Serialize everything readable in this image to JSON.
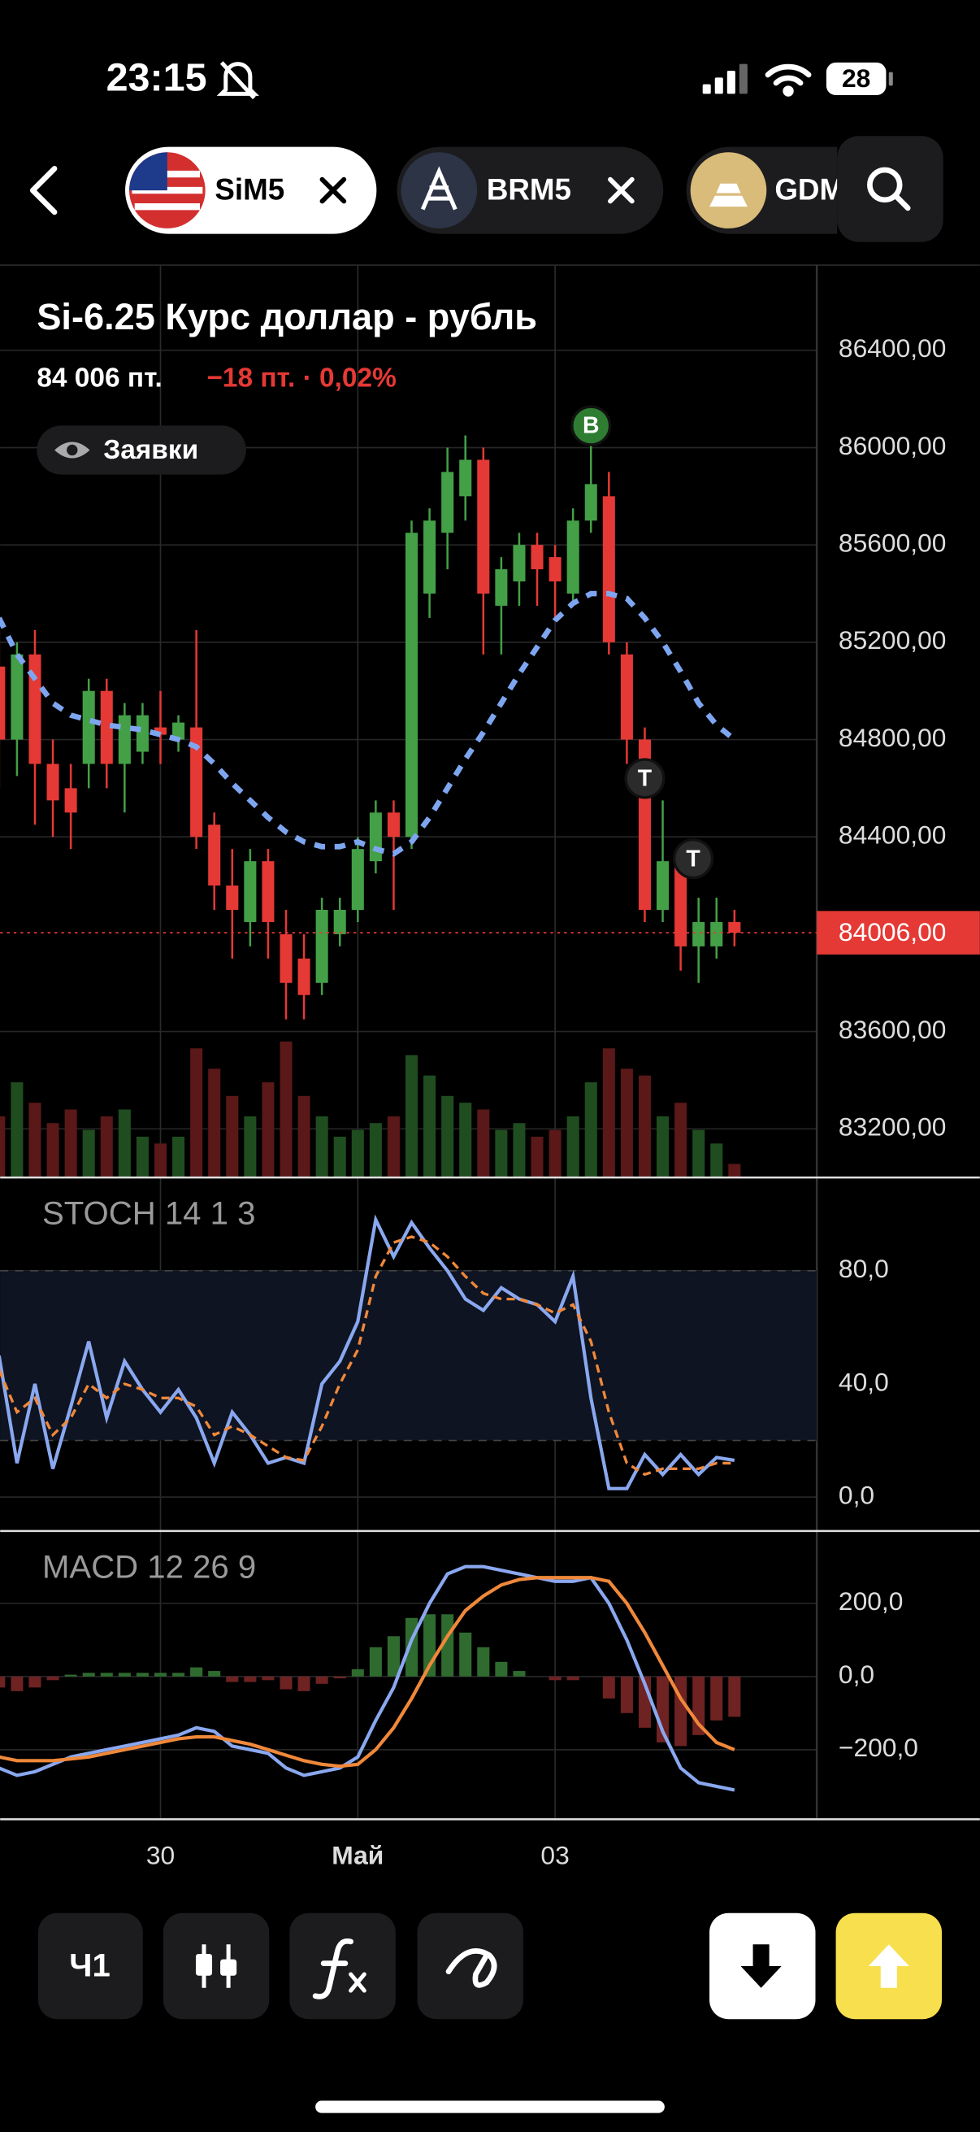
{
  "status_bar": {
    "time": "23:15",
    "battery": "28"
  },
  "tabs": [
    {
      "label": "SiM5"
    },
    {
      "label": "BRM5"
    },
    {
      "label": "GDM"
    }
  ],
  "instrument": {
    "title": "Si-6.25 Курс доллар - рубль",
    "price": "84 006 пт.",
    "change": "−18 пт. · 0,02%",
    "orders_button": "Заявки"
  },
  "toolbar": {
    "interval": "Ч1"
  },
  "chart_data": [
    {
      "type": "candlestick",
      "categories": [
        null,
        null,
        null,
        null,
        null,
        null,
        null,
        null,
        null,
        "30",
        null,
        null,
        null,
        null,
        null,
        null,
        null,
        null,
        null,
        null,
        "Май",
        null,
        null,
        null,
        null,
        null,
        null,
        null,
        null,
        null,
        null,
        "03",
        null,
        null,
        null,
        null,
        null,
        null,
        null,
        null,
        null,
        null
      ],
      "open": [
        85100,
        84800,
        85150,
        84700,
        84600,
        84700,
        85000,
        84700,
        84750,
        84850,
        84800,
        84850,
        84450,
        84200,
        84050,
        84300,
        84000,
        83900,
        83800,
        84000,
        84100,
        84300,
        84500,
        84400,
        85400,
        85650,
        85800,
        85950,
        85350,
        85450,
        85600,
        85550,
        85400,
        85700,
        85800,
        85150,
        84800,
        84100,
        84300,
        83950,
        83950,
        84050
      ],
      "high": [
        85250,
        85200,
        85250,
        84800,
        84700,
        85050,
        85050,
        84950,
        84950,
        85000,
        84900,
        85250,
        84500,
        84350,
        84350,
        84350,
        84100,
        84000,
        84150,
        84150,
        84400,
        84550,
        84550,
        85700,
        85750,
        86000,
        86050,
        86000,
        85550,
        85650,
        85650,
        85600,
        85750,
        86050,
        85900,
        85200,
        84850,
        84550,
        84350,
        84150,
        84150,
        84100
      ],
      "low": [
        84600,
        84650,
        84450,
        84400,
        84350,
        84600,
        84600,
        84500,
        84700,
        84700,
        84750,
        84350,
        84100,
        83900,
        83950,
        83900,
        83650,
        83650,
        83750,
        83950,
        84050,
        84250,
        84100,
        84350,
        85300,
        85500,
        85700,
        85150,
        85150,
        85350,
        85350,
        85300,
        85350,
        85650,
        85150,
        84700,
        84050,
        84050,
        83850,
        83800,
        83900,
        83950
      ],
      "close": [
        84800,
        85150,
        84700,
        84550,
        84500,
        85000,
        84700,
        84900,
        84900,
        84820,
        84870,
        84400,
        84200,
        84100,
        84300,
        84050,
        83800,
        83750,
        84100,
        84100,
        84350,
        84500,
        84400,
        85650,
        85700,
        85900,
        85950,
        85400,
        85500,
        85600,
        85500,
        85450,
        85700,
        85850,
        85200,
        84800,
        84100,
        84300,
        83950,
        84050,
        84050,
        84006
      ],
      "up_color": "#43a047",
      "down_color": "#e53935",
      "ylim": [
        83000,
        86750
      ],
      "yticks": [
        {
          "value": 83200,
          "label": "83200,00"
        },
        {
          "value": 83600,
          "label": "83600,00"
        },
        {
          "value": 84400,
          "label": "84400,00"
        },
        {
          "value": 84800,
          "label": "84800,00"
        },
        {
          "value": 85200,
          "label": "85200,00"
        },
        {
          "value": 85600,
          "label": "85600,00"
        },
        {
          "value": 86000,
          "label": "86000,00"
        },
        {
          "value": 86400,
          "label": "86400,00"
        }
      ],
      "grid": true,
      "current_price": {
        "value": 84006,
        "label": "84006,00",
        "color": "#e53935"
      },
      "ma": {
        "color": "#7ea6f0",
        "values": [
          85300,
          85150,
          85050,
          84950,
          84900,
          84880,
          84860,
          84850,
          84840,
          84820,
          84800,
          84770,
          84700,
          84620,
          84550,
          84480,
          84420,
          84380,
          84360,
          84360,
          84380,
          84350,
          84330,
          84380,
          84480,
          84600,
          84720,
          84830,
          84950,
          85070,
          85180,
          85290,
          85360,
          85400,
          85400,
          85380,
          85300,
          85200,
          85080,
          84950,
          84860,
          84800
        ]
      },
      "volume": {
        "vlim": [
          0,
          100
        ],
        "values": [
          45,
          70,
          55,
          40,
          50,
          35,
          45,
          50,
          30,
          25,
          30,
          95,
          80,
          60,
          45,
          70,
          100,
          60,
          45,
          30,
          35,
          40,
          45,
          90,
          75,
          60,
          55,
          50,
          35,
          40,
          30,
          35,
          45,
          70,
          95,
          80,
          75,
          45,
          55,
          35,
          25,
          10
        ]
      },
      "markers": [
        {
          "label": "B",
          "x": 33,
          "y": 86090,
          "color": "#2e7d32"
        },
        {
          "label": "T",
          "x": 36,
          "y": 84640,
          "color": "#2b2b2b"
        },
        {
          "label": "T",
          "x": 38.7,
          "y": 84310,
          "color": "#2b2b2b"
        }
      ]
    },
    {
      "type": "line",
      "title": "STOCH 14 1 3",
      "ylim": [
        -12,
        112
      ],
      "yticks": [
        {
          "value": 0,
          "label": "0,0"
        },
        {
          "value": 40,
          "label": "40,0"
        },
        {
          "value": 80,
          "label": "80,0"
        }
      ],
      "band": [
        20,
        80
      ],
      "series": [
        {
          "style": "line",
          "color": "#8aa8f0",
          "values": [
            50,
            12,
            40,
            10,
            32,
            55,
            28,
            48,
            38,
            30,
            38,
            28,
            12,
            30,
            22,
            12,
            14,
            12,
            40,
            48,
            62,
            98,
            85,
            97,
            88,
            80,
            70,
            66,
            74,
            70,
            68,
            62,
            78,
            35,
            3,
            3,
            15,
            8,
            15,
            8,
            14,
            13
          ]
        },
        {
          "style": "dashed",
          "color": "#f0883a",
          "values": [
            45,
            30,
            35,
            22,
            28,
            40,
            35,
            40,
            38,
            35,
            35,
            32,
            22,
            25,
            22,
            18,
            14,
            13,
            25,
            40,
            52,
            78,
            90,
            92,
            90,
            85,
            78,
            72,
            70,
            70,
            68,
            65,
            68,
            55,
            30,
            12,
            8,
            10,
            10,
            10,
            12,
            12
          ]
        }
      ]
    },
    {
      "type": "line",
      "title": "MACD 12 26 9",
      "ylim": [
        -390,
        390
      ],
      "yticks": [
        {
          "value": -200,
          "label": "−200,0"
        },
        {
          "value": 0,
          "label": "0,0"
        },
        {
          "value": 200,
          "label": "200,0"
        }
      ],
      "series": [
        {
          "style": "bar",
          "color": "#2f6b2f",
          "negative_color": "#6e2222",
          "values": [
            -30,
            -40,
            -30,
            -10,
            5,
            10,
            10,
            10,
            10,
            10,
            10,
            25,
            15,
            -15,
            -15,
            -10,
            -35,
            -40,
            -20,
            -5,
            20,
            80,
            110,
            160,
            170,
            170,
            120,
            80,
            40,
            15,
            0,
            -10,
            -10,
            0,
            -60,
            -100,
            -140,
            -180,
            -190,
            -160,
            -120,
            -110
          ]
        },
        {
          "style": "line",
          "color": "#8aa8f0",
          "values": [
            -250,
            -270,
            -260,
            -240,
            -220,
            -210,
            -200,
            -190,
            -180,
            -170,
            -160,
            -140,
            -150,
            -190,
            -200,
            -210,
            -250,
            -270,
            -260,
            -250,
            -220,
            -120,
            -30,
            100,
            200,
            280,
            300,
            300,
            290,
            280,
            270,
            260,
            260,
            270,
            200,
            100,
            -20,
            -150,
            -250,
            -290,
            -300,
            -310
          ]
        },
        {
          "style": "line",
          "color": "#f0883a",
          "values": [
            -220,
            -230,
            -230,
            -230,
            -225,
            -220,
            -210,
            -200,
            -190,
            -180,
            -170,
            -165,
            -165,
            -175,
            -185,
            -200,
            -215,
            -230,
            -240,
            -245,
            -240,
            -200,
            -140,
            -60,
            30,
            110,
            180,
            220,
            250,
            265,
            270,
            270,
            270,
            270,
            260,
            200,
            120,
            30,
            -60,
            -130,
            -180,
            -200
          ]
        }
      ]
    }
  ]
}
